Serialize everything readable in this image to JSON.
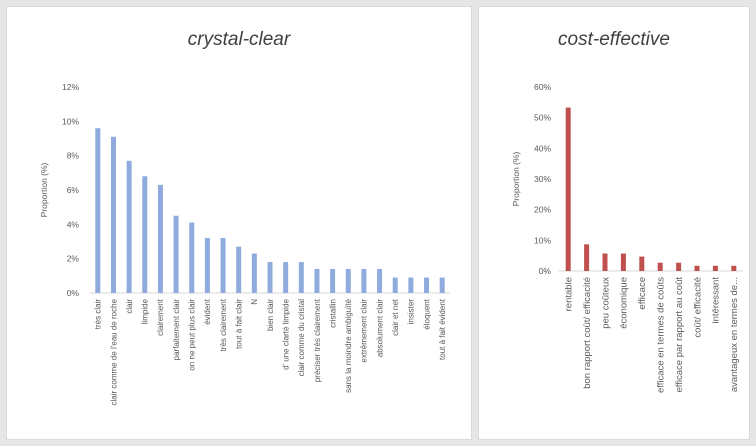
{
  "chart_data": [
    {
      "type": "bar",
      "title": "crystal-clear",
      "ylabel": "Proportion (%)",
      "xlabel": "",
      "ylim": [
        0,
        12
      ],
      "yticks": [
        "0%",
        "2%",
        "4%",
        "6%",
        "8%",
        "10%",
        "12%"
      ],
      "color": "#8faadc",
      "categories": [
        "très clair",
        "clair comme de l'eau de roche",
        "clair",
        "limpide",
        "clairement",
        "parfaitement clair",
        "on ne peut plus clair",
        "évident",
        "très clairement",
        "tout à fait clair",
        "N",
        "bien clair",
        "d' une clarté limpide",
        "clair comme du cristal",
        "préciser très clairement",
        "cristallin",
        "sans la moindre ambiguïté",
        "extrêmement clair",
        "absolument clair",
        "clair et net",
        "insister",
        "éloquent",
        "tout à fait évident"
      ],
      "values": [
        9.6,
        9.1,
        7.7,
        6.8,
        6.3,
        4.5,
        4.1,
        3.2,
        3.2,
        2.7,
        2.3,
        1.8,
        1.8,
        1.8,
        1.4,
        1.4,
        1.4,
        1.4,
        1.4,
        0.9,
        0.9,
        0.9,
        0.9
      ],
      "grid": false
    },
    {
      "type": "bar",
      "title": "cost-effective",
      "ylabel": "Proportion (%)",
      "xlabel": "",
      "ylim": [
        0,
        60
      ],
      "yticks": [
        "0%",
        "10%",
        "20%",
        "30%",
        "40%",
        "50%",
        "60%"
      ],
      "color": "#c0504d",
      "categories": [
        "rentable",
        "bon rapport coût/ efficacité",
        "peu coûteux",
        "économique",
        "efficace",
        "efficace en termes de coûts",
        "efficace par rapport au coût",
        "coût/ efficacité",
        "intéressant",
        "avantageux en termes de..."
      ],
      "values": [
        53.3,
        8.7,
        5.7,
        5.7,
        4.7,
        2.7,
        2.7,
        1.7,
        1.7,
        1.7
      ],
      "grid": false
    }
  ]
}
